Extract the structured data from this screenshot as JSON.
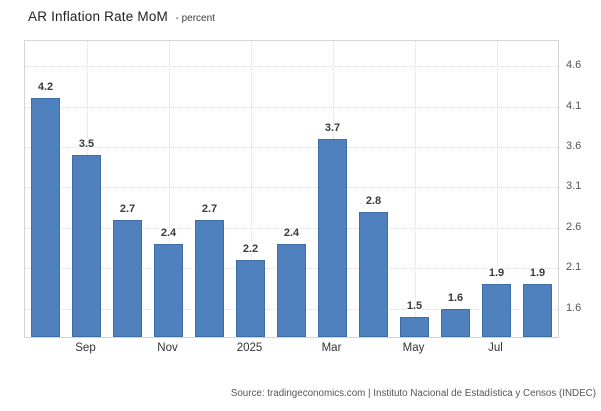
{
  "header": {
    "title": "AR Inflation Rate MoM",
    "subtitle": "- percent"
  },
  "footer": {
    "source": "Source: tradingeconomics.com | Instituto Nacional de Estadística y Censos (INDEC)"
  },
  "colors": {
    "bar": "#4e81bd",
    "bar_border": "#3f6ea5",
    "grid": "#dcdcdc",
    "plot_border": "#d4d4d4",
    "value_label": "#3b3b3b",
    "y_axis_label": "#555555",
    "x_axis_label": "#333333"
  },
  "chart_data": {
    "type": "bar",
    "title": "AR Inflation Rate MoM",
    "ylabel": "percent",
    "values": [
      4.2,
      3.5,
      2.7,
      2.4,
      2.7,
      2.2,
      2.4,
      3.7,
      2.8,
      1.5,
      1.6,
      1.9,
      1.9
    ],
    "x_ticks": [
      {
        "bar_index": 1,
        "label": "Sep"
      },
      {
        "bar_index": 3,
        "label": "Nov"
      },
      {
        "bar_index": 5,
        "label": "2025"
      },
      {
        "bar_index": 7,
        "label": "Mar"
      },
      {
        "bar_index": 9,
        "label": "May"
      },
      {
        "bar_index": 11,
        "label": "Jul"
      }
    ],
    "y_ticks": [
      4.6,
      4.1,
      3.6,
      3.1,
      2.6,
      2.1,
      1.6
    ],
    "ylim": [
      1.25,
      4.91
    ],
    "grid": "dotted",
    "legend": "none",
    "y_axis_side": "right"
  }
}
